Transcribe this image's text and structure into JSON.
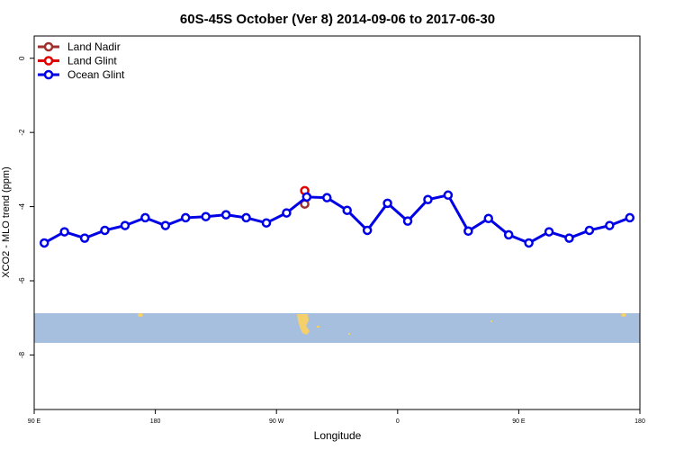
{
  "chart_data": {
    "type": "line",
    "title": "60S-45S October (Ver 8)   2014-09-06 to 2017-06-30",
    "x_label": "Longitude",
    "y_label": "XCO2 - MLO trend (ppm)",
    "xlim": [
      90,
      540
    ],
    "ylim": [
      -9.47,
      0.6
    ],
    "xticks": [
      {
        "value": 90,
        "label": "90 E"
      },
      {
        "value": 180,
        "label": "180"
      },
      {
        "value": 270,
        "label": "90 W"
      },
      {
        "value": 360,
        "label": "0"
      },
      {
        "value": 450,
        "label": "90 E"
      },
      {
        "value": 540,
        "label": "180"
      }
    ],
    "yticks": [
      0,
      -2,
      -4,
      -6,
      -8
    ],
    "legend": "top-left",
    "series": [
      {
        "name": "Land Nadir",
        "color": "#a0302e",
        "x": [
          291
        ],
        "values": [
          -3.93
        ]
      },
      {
        "name": "Land Glint",
        "color": "#e00000",
        "x": [
          291
        ],
        "values": [
          -3.57
        ]
      },
      {
        "name": "Ocean Glint",
        "color": "#0000e6",
        "x": [
          97.5,
          112.5,
          127.5,
          142.5,
          157.5,
          172.5,
          187.5,
          202.5,
          217.5,
          232.5,
          247.5,
          262.5,
          277.5,
          292.5,
          307.5,
          322.5,
          337.5,
          352.5,
          367.5,
          382.5,
          397.5,
          412.5,
          427.5,
          442.5,
          457.5,
          472.5,
          487.5,
          502.5,
          517.5,
          532.5
        ],
        "values": [
          -4.98,
          -4.68,
          -4.85,
          -4.64,
          -4.51,
          -4.3,
          -4.51,
          -4.3,
          -4.27,
          -4.22,
          -4.3,
          -4.44,
          -4.17,
          -3.74,
          -3.76,
          -4.1,
          -4.64,
          -3.91,
          -4.39,
          -3.81,
          -3.69,
          -4.66,
          -4.32,
          -4.76,
          -4.98,
          -4.68,
          -4.85,
          -4.64,
          -4.51,
          -4.3
        ]
      }
    ]
  }
}
